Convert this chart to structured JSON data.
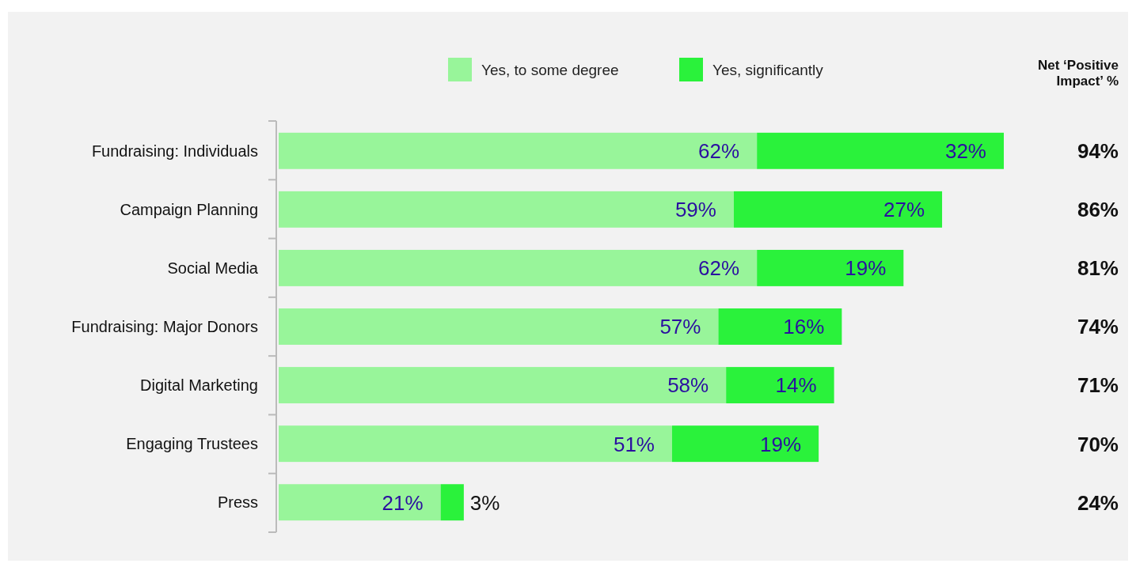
{
  "chart_data": [
    {
      "type": "bar",
      "orientation": "horizontal",
      "stacked": true,
      "legend": "top",
      "categories": [
        "Fundraising: Individuals",
        "Campaign Planning",
        "Social Media",
        "Fundraising: Major Donors",
        "Digital Marketing",
        "Engaging Trustees",
        "Press"
      ],
      "series": [
        {
          "name": "Yes, to some degree",
          "color": "#98f59a",
          "values": [
            62,
            59,
            62,
            57,
            58,
            51,
            21
          ],
          "value_labels": [
            "62%",
            "59%",
            "62%",
            "57%",
            "58%",
            "51%",
            "21%"
          ]
        },
        {
          "name": "Yes, significantly",
          "color": "#2af23b",
          "values": [
            32,
            27,
            19,
            16,
            14,
            19,
            3
          ],
          "value_labels": [
            "32%",
            "27%",
            "19%",
            "16%",
            "14%",
            "19%",
            "3%"
          ]
        }
      ]
    },
    {
      "type": "other",
      "title": "Net ‘Positive Impact’ %",
      "annotations": [
        "94%",
        "86%",
        "81%",
        "74%",
        "71%",
        "70%",
        "24%"
      ]
    }
  ]
}
